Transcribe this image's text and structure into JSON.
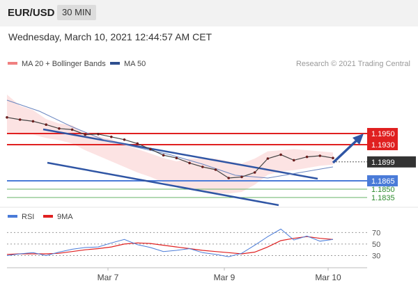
{
  "header": {
    "pair": "EUR/USD",
    "timeframe": "30 MIN"
  },
  "datetime": "Wednesday, March 10, 2021 12:44:57 AM CET",
  "legend": {
    "ma20_label": "MA 20 + Bollinger Bands",
    "ma50_label": "MA 50",
    "ma20_color": "#f08080",
    "ma50_color": "#2f4f8f",
    "credit": "Research © 2021 Trading Central"
  },
  "rsi_legend": {
    "rsi_label": "RSI",
    "ma9_label": "9MA",
    "rsi_color": "#4a7bd8",
    "ma9_color": "#e02020"
  },
  "chart_data": [
    {
      "type": "line",
      "y_range": [
        1.182,
        1.204
      ],
      "x_labels": [
        "Mar 7",
        "Mar 9",
        "Mar 10"
      ],
      "current_price": 1.1899,
      "resistance_levels": [
        1.195,
        1.193
      ],
      "support_levels": [
        1.1865,
        1.185,
        1.1835
      ],
      "level_colors": {
        "resistance": "#e02020",
        "support_primary": "#4a7bd8",
        "support_secondary": "#66b266",
        "current": "#333333"
      },
      "series": [
        {
          "name": "Price",
          "x": [
            0,
            4,
            8,
            12,
            16,
            20,
            24,
            28,
            32,
            36,
            40,
            44,
            48,
            52,
            56,
            60,
            64,
            68,
            72,
            76,
            80,
            84,
            88,
            92,
            96,
            100
          ],
          "values": [
            1.1979,
            1.1975,
            1.1972,
            1.1966,
            1.1959,
            1.1957,
            1.1948,
            1.1949,
            1.1944,
            1.1939,
            1.1932,
            1.1922,
            1.1911,
            1.1906,
            1.1897,
            1.189,
            1.1885,
            1.187,
            1.1872,
            1.188,
            1.1905,
            1.1912,
            1.1902,
            1.1908,
            1.191,
            1.1906
          ]
        },
        {
          "name": "MA 50",
          "x": [
            0,
            10,
            20,
            30,
            40,
            50,
            60,
            70,
            80,
            90,
            100
          ],
          "values": [
            1.201,
            1.199,
            1.1962,
            1.1938,
            1.1925,
            1.1912,
            1.1895,
            1.1875,
            1.187,
            1.188,
            1.189
          ]
        }
      ],
      "bollinger_upper": [
        1.202,
        1.2,
        1.1992,
        1.1976,
        1.1968,
        1.1965,
        1.195,
        1.1945,
        1.194,
        1.193,
        1.1922,
        1.1914,
        1.1906,
        1.19,
        1.1905,
        1.1905,
        1.1905,
        1.19,
        1.1896,
        1.1905,
        1.1918,
        1.192,
        1.1922,
        1.192,
        1.1918,
        1.1916
      ],
      "bollinger_lower": [
        1.195,
        1.1948,
        1.1948,
        1.1942,
        1.1938,
        1.1932,
        1.192,
        1.191,
        1.19,
        1.189,
        1.188,
        1.1872,
        1.1862,
        1.1855,
        1.185,
        1.1846,
        1.1843,
        1.1842,
        1.1845,
        1.1858,
        1.1876,
        1.1882,
        1.1884,
        1.1888,
        1.1892,
        1.1894
      ]
    },
    {
      "type": "line",
      "y_ticks": [
        70,
        50,
        30
      ],
      "y_range": [
        10,
        85
      ],
      "series": [
        {
          "name": "RSI",
          "x": [
            0,
            4,
            8,
            12,
            16,
            20,
            24,
            28,
            32,
            36,
            40,
            44,
            48,
            52,
            56,
            60,
            64,
            68,
            72,
            76,
            80,
            84,
            88,
            92,
            96,
            100
          ],
          "values": [
            30,
            33,
            35,
            30,
            36,
            41,
            44,
            45,
            52,
            58,
            49,
            44,
            37,
            39,
            42,
            35,
            32,
            28,
            34,
            48,
            63,
            76,
            57,
            64,
            55,
            58
          ]
        },
        {
          "name": "9MA",
          "x": [
            0,
            4,
            8,
            12,
            16,
            20,
            24,
            28,
            32,
            36,
            40,
            44,
            48,
            52,
            56,
            60,
            64,
            68,
            72,
            76,
            80,
            84,
            88,
            92,
            96,
            100
          ],
          "values": [
            32,
            33,
            33,
            33,
            34,
            37,
            40,
            42,
            45,
            50,
            52,
            51,
            48,
            45,
            42,
            39,
            37,
            35,
            33,
            36,
            45,
            56,
            60,
            63,
            60,
            58
          ]
        }
      ]
    }
  ]
}
